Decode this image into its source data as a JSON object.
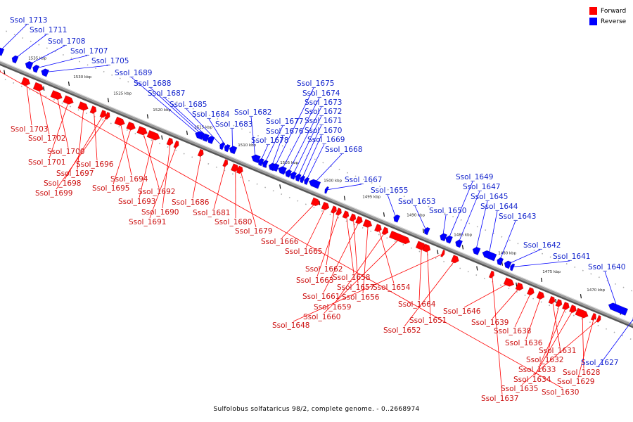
{
  "colors": {
    "forward": "#ff0000",
    "reverse": "#0000ff",
    "forward_label": "#cc1111",
    "reverse_label": "#1122cc",
    "backbone": "#9a9a9a"
  },
  "legend": {
    "forward": "Forward",
    "reverse": "Reverse"
  },
  "caption": "Sulfolobus solfataricus 98/2, complete genome. - 0..2668974",
  "diagram": {
    "ticks": [
      "1535 kbp",
      "1530 kbp",
      "1525 kbp",
      "1520 kbp",
      "1515 kbp",
      "1510 kbp",
      "1505 kbp",
      "1500 kbp",
      "1495 kbp",
      "1490 kbp",
      "1485 kbp",
      "1480 kbp",
      "1475 kbp",
      "1470 kbp"
    ],
    "genes": [
      {
        "name": "Ssol_1713",
        "strand": "reverse"
      },
      {
        "name": "Ssol_1711",
        "strand": "reverse"
      },
      {
        "name": "Ssol_1708",
        "strand": "reverse"
      },
      {
        "name": "Ssol_1707",
        "strand": "reverse"
      },
      {
        "name": "Ssol_1705",
        "strand": "reverse"
      },
      {
        "name": "Ssol_1689",
        "strand": "reverse"
      },
      {
        "name": "Ssol_1688",
        "strand": "reverse"
      },
      {
        "name": "Ssol_1687",
        "strand": "reverse"
      },
      {
        "name": "Ssol_1685",
        "strand": "reverse"
      },
      {
        "name": "Ssol_1684",
        "strand": "reverse"
      },
      {
        "name": "Ssol_1683",
        "strand": "reverse"
      },
      {
        "name": "Ssol_1682",
        "strand": "reverse"
      },
      {
        "name": "Ssol_1677",
        "strand": "reverse"
      },
      {
        "name": "Ssol_1676",
        "strand": "reverse"
      },
      {
        "name": "Ssol_1678",
        "strand": "reverse"
      },
      {
        "name": "Ssol_1675",
        "strand": "reverse"
      },
      {
        "name": "Ssol_1674",
        "strand": "reverse"
      },
      {
        "name": "Ssol_1673",
        "strand": "reverse"
      },
      {
        "name": "Ssol_1672",
        "strand": "reverse"
      },
      {
        "name": "Ssol_1671",
        "strand": "reverse"
      },
      {
        "name": "Ssol_1670",
        "strand": "reverse"
      },
      {
        "name": "Ssol_1669",
        "strand": "reverse"
      },
      {
        "name": "Ssol_1668",
        "strand": "reverse"
      },
      {
        "name": "Ssol_1667",
        "strand": "reverse"
      },
      {
        "name": "Ssol_1655",
        "strand": "reverse"
      },
      {
        "name": "Ssol_1653",
        "strand": "reverse"
      },
      {
        "name": "Ssol_1650",
        "strand": "reverse"
      },
      {
        "name": "Ssol_1649",
        "strand": "reverse"
      },
      {
        "name": "Ssol_1647",
        "strand": "reverse"
      },
      {
        "name": "Ssol_1645",
        "strand": "reverse"
      },
      {
        "name": "Ssol_1644",
        "strand": "reverse"
      },
      {
        "name": "Ssol_1643",
        "strand": "reverse"
      },
      {
        "name": "Ssol_1642",
        "strand": "reverse"
      },
      {
        "name": "Ssol_1641",
        "strand": "reverse"
      },
      {
        "name": "Ssol_1640",
        "strand": "reverse"
      },
      {
        "name": "Ssol_1627",
        "strand": "reverse"
      },
      {
        "name": "Ssol_1703",
        "strand": "forward"
      },
      {
        "name": "Ssol_1702",
        "strand": "forward"
      },
      {
        "name": "Ssol_1700",
        "strand": "forward"
      },
      {
        "name": "Ssol_1701",
        "strand": "forward"
      },
      {
        "name": "Ssol_1697",
        "strand": "forward"
      },
      {
        "name": "Ssol_1696",
        "strand": "forward"
      },
      {
        "name": "Ssol_1698",
        "strand": "forward"
      },
      {
        "name": "Ssol_1699",
        "strand": "forward"
      },
      {
        "name": "Ssol_1694",
        "strand": "forward"
      },
      {
        "name": "Ssol_1695",
        "strand": "forward"
      },
      {
        "name": "Ssol_1692",
        "strand": "forward"
      },
      {
        "name": "Ssol_1693",
        "strand": "forward"
      },
      {
        "name": "Ssol_1690",
        "strand": "forward"
      },
      {
        "name": "Ssol_1691",
        "strand": "forward"
      },
      {
        "name": "Ssol_1686",
        "strand": "forward"
      },
      {
        "name": "Ssol_1681",
        "strand": "forward"
      },
      {
        "name": "Ssol_1680",
        "strand": "forward"
      },
      {
        "name": "Ssol_1679",
        "strand": "forward"
      },
      {
        "name": "Ssol_1666",
        "strand": "forward"
      },
      {
        "name": "Ssol_1665",
        "strand": "forward"
      },
      {
        "name": "Ssol_1662",
        "strand": "forward"
      },
      {
        "name": "Ssol_1663",
        "strand": "forward"
      },
      {
        "name": "Ssol_1658",
        "strand": "forward"
      },
      {
        "name": "Ssol_1657",
        "strand": "forward"
      },
      {
        "name": "Ssol_1661",
        "strand": "forward"
      },
      {
        "name": "Ssol_1656",
        "strand": "forward"
      },
      {
        "name": "Ssol_1654",
        "strand": "forward"
      },
      {
        "name": "Ssol_1659",
        "strand": "forward"
      },
      {
        "name": "Ssol_1660",
        "strand": "forward"
      },
      {
        "name": "Ssol_1664",
        "strand": "forward"
      },
      {
        "name": "Ssol_1651",
        "strand": "forward"
      },
      {
        "name": "Ssol_1648",
        "strand": "forward"
      },
      {
        "name": "Ssol_1652",
        "strand": "forward"
      },
      {
        "name": "Ssol_1646",
        "strand": "forward"
      },
      {
        "name": "Ssol_1639",
        "strand": "forward"
      },
      {
        "name": "Ssol_1638",
        "strand": "forward"
      },
      {
        "name": "Ssol_1636",
        "strand": "forward"
      },
      {
        "name": "Ssol_1631",
        "strand": "forward"
      },
      {
        "name": "Ssol_1632",
        "strand": "forward"
      },
      {
        "name": "Ssol_1633",
        "strand": "forward"
      },
      {
        "name": "Ssol_1634",
        "strand": "forward"
      },
      {
        "name": "Ssol_1628",
        "strand": "forward"
      },
      {
        "name": "Ssol_1629",
        "strand": "forward"
      },
      {
        "name": "Ssol_1635",
        "strand": "forward"
      },
      {
        "name": "Ssol_1630",
        "strand": "forward"
      },
      {
        "name": "Ssol_1637",
        "strand": "forward"
      }
    ]
  }
}
